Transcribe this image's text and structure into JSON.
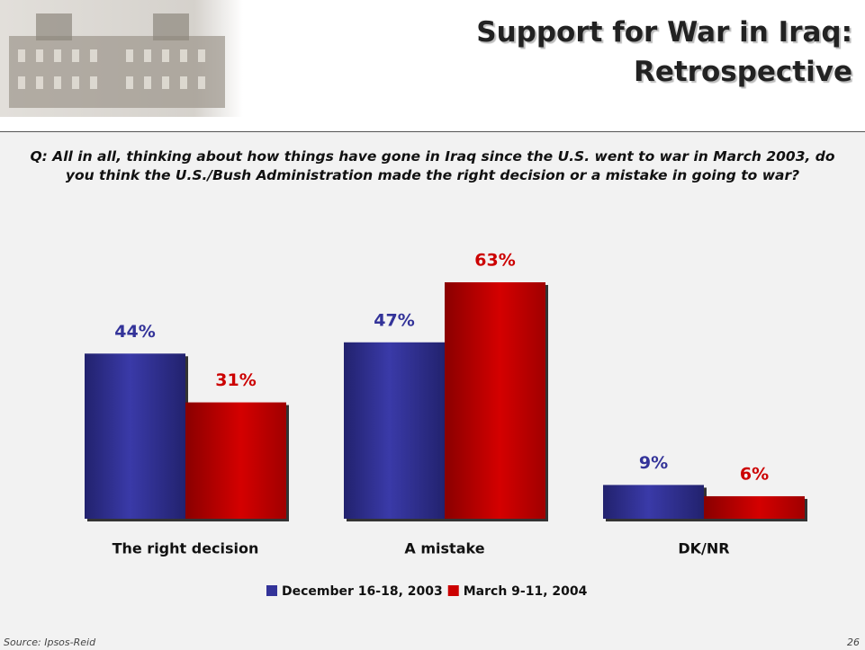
{
  "chart_data": {
    "type": "bar",
    "title": [
      "Support for War in Iraq:",
      "Retrospective"
    ],
    "question": "Q: All in all, thinking about how things have gone in Iraq since the U.S. went to war in March 2003, do you think the U.S./Bush Administration made the right decision or a mistake in going to war?",
    "categories": [
      "The right decision",
      "A mistake",
      "DK/NR"
    ],
    "series": [
      {
        "name": "December 16-18, 2003",
        "color": "#333399",
        "values": [
          44,
          47,
          9
        ],
        "value_labels": [
          "44%",
          "47%",
          "9%"
        ]
      },
      {
        "name": "March 9-11, 2004",
        "color": "#cc0000",
        "values": [
          31,
          63,
          6
        ],
        "value_labels": [
          "31%",
          "63%",
          "6%"
        ]
      }
    ],
    "source": "Source: Ipsos-Reid",
    "page_number": "26"
  }
}
